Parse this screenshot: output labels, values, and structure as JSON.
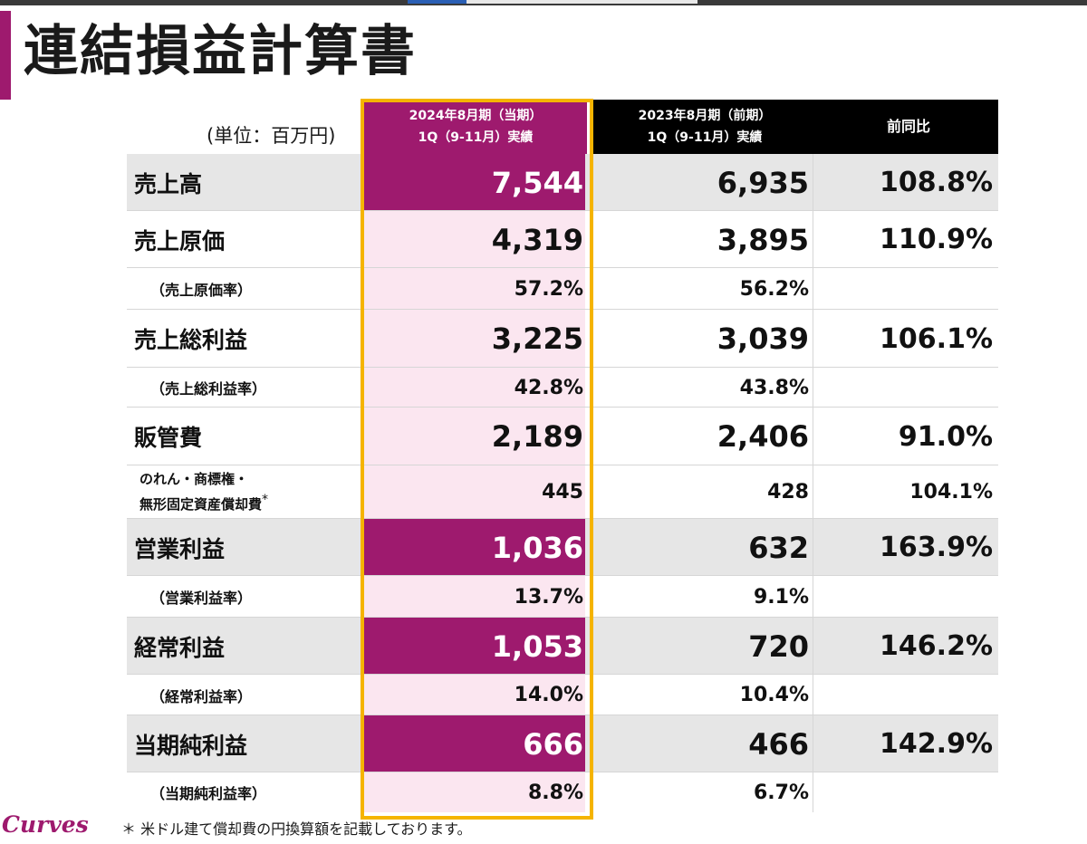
{
  "title": "連結損益計算書",
  "unit_label": "(単位：百万円)",
  "columns": {
    "current_line1": "2024年8月期（当期）",
    "current_line2": "1Q（9-11月）実績",
    "previous_line1": "2023年8月期（前期）",
    "previous_line2": "1Q（9-11月）実績",
    "ratio": "前同比"
  },
  "rows": [
    {
      "label": "売上高",
      "current": "7,544",
      "previous": "6,935",
      "ratio": "108.8%"
    },
    {
      "label": "売上原価",
      "current": "4,319",
      "previous": "3,895",
      "ratio": "110.9%"
    },
    {
      "label": "（売上原価率）",
      "current": "57.2%",
      "previous": "56.2%",
      "ratio": ""
    },
    {
      "label": "売上総利益",
      "current": "3,225",
      "previous": "3,039",
      "ratio": "106.1%"
    },
    {
      "label": "（売上総利益率）",
      "current": "42.8%",
      "previous": "43.8%",
      "ratio": ""
    },
    {
      "label": "販管費",
      "current": "2,189",
      "previous": "2,406",
      "ratio": "91.0%"
    },
    {
      "label_line1": "のれん・商標権・",
      "label_line2": "無形固定資産償却費",
      "label_mark": "*",
      "current": "445",
      "previous": "428",
      "ratio": "104.1%"
    },
    {
      "label": "営業利益",
      "current": "1,036",
      "previous": "632",
      "ratio": "163.9%"
    },
    {
      "label": "（営業利益率）",
      "current": "13.7%",
      "previous": "9.1%",
      "ratio": ""
    },
    {
      "label": "経常利益",
      "current": "1,053",
      "previous": "720",
      "ratio": "146.2%"
    },
    {
      "label": "（経常利益率）",
      "current": "14.0%",
      "previous": "10.4%",
      "ratio": ""
    },
    {
      "label": "当期純利益",
      "current": "666",
      "previous": "466",
      "ratio": "142.9%"
    },
    {
      "label": "（当期純利益率）",
      "current": "8.8%",
      "previous": "6.7%",
      "ratio": ""
    }
  ],
  "logo_text": "Curves",
  "footnote": "＊ 米ドル建て償却費の円換算額を記載しております。",
  "colors": {
    "accent": "#9e1a6e",
    "current_column_tint": "#fbe6f0",
    "highlight_frame": "#f5b400",
    "header_bg": "#000000",
    "row_gray": "#e6e6e6"
  }
}
